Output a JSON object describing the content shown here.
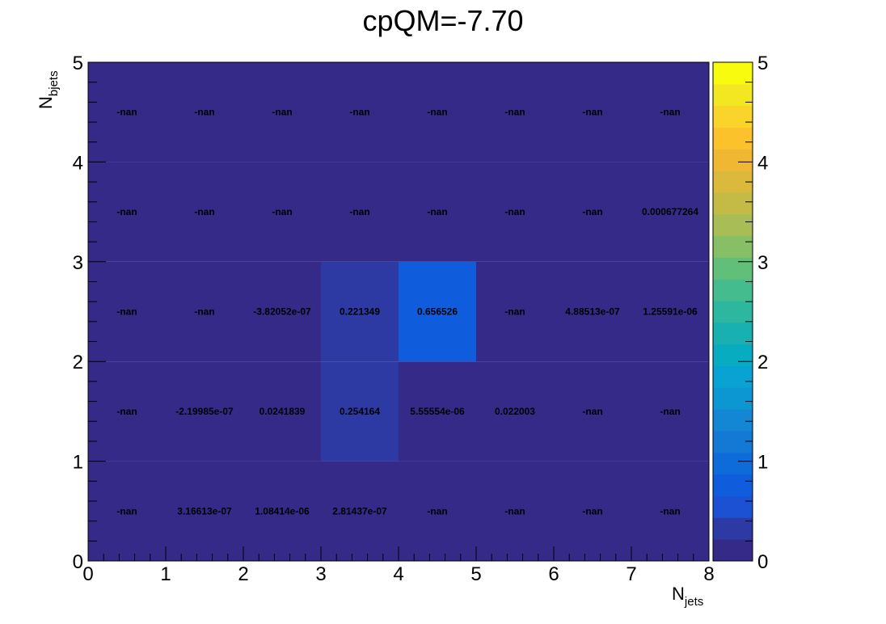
{
  "chart_data": {
    "type": "heatmap",
    "title": "cpQM=-7.70",
    "xlabel": {
      "main": "N",
      "sub": "jets"
    },
    "ylabel": {
      "main": "N",
      "sub": "bjets"
    },
    "xlim": [
      0,
      8
    ],
    "ylim": [
      0,
      5
    ],
    "x_ticks": [
      "0",
      "1",
      "2",
      "3",
      "4",
      "5",
      "6",
      "7",
      "8"
    ],
    "y_ticks": [
      "0",
      "1",
      "2",
      "3",
      "4",
      "5"
    ],
    "z_range": [
      0,
      5
    ],
    "z_ticks": [
      "0",
      "1",
      "2",
      "3",
      "4",
      "5"
    ],
    "palette": [
      "#352a87",
      "#2d3aa3",
      "#1c51d3",
      "#0f5cdd",
      "#0d6cd9",
      "#1479d4",
      "#1487d4",
      "#0c96d2",
      "#08a2d3",
      "#07acc1",
      "#18b0b0",
      "#2db6a0",
      "#45bc8e",
      "#62bf79",
      "#86bf65",
      "#a8bd56",
      "#c4bb47",
      "#dbb93c",
      "#f0b732",
      "#fcc22b",
      "#fad42a",
      "#f3e721",
      "#f9fb0e"
    ],
    "cells": [
      {
        "x": 0,
        "y": 0,
        "label": "-nan",
        "value": 0
      },
      {
        "x": 1,
        "y": 0,
        "label": "3.16613e-07",
        "value": 3.16613e-07
      },
      {
        "x": 2,
        "y": 0,
        "label": "1.08414e-06",
        "value": 1.08414e-06
      },
      {
        "x": 3,
        "y": 0,
        "label": "2.81437e-07",
        "value": 2.81437e-07
      },
      {
        "x": 4,
        "y": 0,
        "label": "-nan",
        "value": 0
      },
      {
        "x": 5,
        "y": 0,
        "label": "-nan",
        "value": 0
      },
      {
        "x": 6,
        "y": 0,
        "label": "-nan",
        "value": 0
      },
      {
        "x": 7,
        "y": 0,
        "label": "-nan",
        "value": 0
      },
      {
        "x": 0,
        "y": 1,
        "label": "-nan",
        "value": 0
      },
      {
        "x": 1,
        "y": 1,
        "label": "-2.19985e-07",
        "value": -2.19985e-07
      },
      {
        "x": 2,
        "y": 1,
        "label": "0.0241839",
        "value": 0.0241839
      },
      {
        "x": 3,
        "y": 1,
        "label": "0.254164",
        "value": 0.254164
      },
      {
        "x": 4,
        "y": 1,
        "label": "5.55554e-06",
        "value": 5.55554e-06
      },
      {
        "x": 5,
        "y": 1,
        "label": "0.022003",
        "value": 0.022003
      },
      {
        "x": 6,
        "y": 1,
        "label": "-nan",
        "value": 0
      },
      {
        "x": 7,
        "y": 1,
        "label": "-nan",
        "value": 0
      },
      {
        "x": 0,
        "y": 2,
        "label": "-nan",
        "value": 0
      },
      {
        "x": 1,
        "y": 2,
        "label": "-nan",
        "value": 0
      },
      {
        "x": 2,
        "y": 2,
        "label": "-3.82052e-07",
        "value": -3.82052e-07
      },
      {
        "x": 3,
        "y": 2,
        "label": "0.221349",
        "value": 0.221349
      },
      {
        "x": 4,
        "y": 2,
        "label": "0.656526",
        "value": 0.656526
      },
      {
        "x": 5,
        "y": 2,
        "label": "-nan",
        "value": 0
      },
      {
        "x": 6,
        "y": 2,
        "label": "4.88513e-07",
        "value": 4.88513e-07
      },
      {
        "x": 7,
        "y": 2,
        "label": "1.25591e-06",
        "value": 1.25591e-06
      },
      {
        "x": 0,
        "y": 3,
        "label": "-nan",
        "value": 0
      },
      {
        "x": 1,
        "y": 3,
        "label": "-nan",
        "value": 0
      },
      {
        "x": 2,
        "y": 3,
        "label": "-nan",
        "value": 0
      },
      {
        "x": 3,
        "y": 3,
        "label": "-nan",
        "value": 0
      },
      {
        "x": 4,
        "y": 3,
        "label": "-nan",
        "value": 0
      },
      {
        "x": 5,
        "y": 3,
        "label": "-nan",
        "value": 0
      },
      {
        "x": 6,
        "y": 3,
        "label": "-nan",
        "value": 0
      },
      {
        "x": 7,
        "y": 3,
        "label": "0.000677264",
        "value": 0.000677264
      },
      {
        "x": 0,
        "y": 4,
        "label": "-nan",
        "value": 0
      },
      {
        "x": 1,
        "y": 4,
        "label": "-nan",
        "value": 0
      },
      {
        "x": 2,
        "y": 4,
        "label": "-nan",
        "value": 0
      },
      {
        "x": 3,
        "y": 4,
        "label": "-nan",
        "value": 0
      },
      {
        "x": 4,
        "y": 4,
        "label": "-nan",
        "value": 0
      },
      {
        "x": 5,
        "y": 4,
        "label": "-nan",
        "value": 0
      },
      {
        "x": 6,
        "y": 4,
        "label": "-nan",
        "value": 0
      },
      {
        "x": 7,
        "y": 4,
        "label": "-nan",
        "value": 0
      }
    ]
  }
}
